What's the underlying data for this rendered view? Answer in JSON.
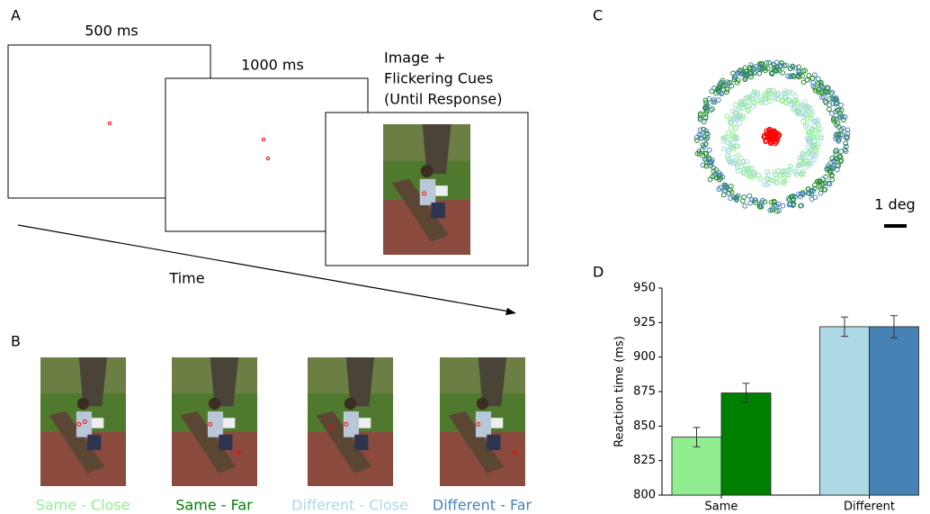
{
  "panel_a": {
    "label": "A",
    "durations": [
      "500 ms",
      "1000 ms"
    ],
    "stimulus_caption": [
      "Image +",
      "Flickering Cues",
      "(Until Response)"
    ],
    "time_label": "Time"
  },
  "panel_b": {
    "label": "B"
  },
  "panel_c": {
    "label": "C",
    "scale_label": "1 deg"
  },
  "chart_data": {
    "label": "D",
    "type": "bar",
    "ylabel": "Reaction time (ms)",
    "categories": [
      "Same",
      "Different"
    ],
    "series": [
      {
        "name": "Same - Close",
        "color": "#90ee90",
        "values": [
          842,
          null
        ],
        "errors": [
          7,
          null
        ]
      },
      {
        "name": "Same - Far",
        "color": "#008000",
        "values": [
          874,
          null
        ],
        "errors": [
          7,
          null
        ]
      },
      {
        "name": "Different - Close",
        "color": "#add8e6",
        "values": [
          null,
          922
        ],
        "errors": [
          null,
          7
        ]
      },
      {
        "name": "Different - Far",
        "color": "#4682b4",
        "values": [
          null,
          922
        ],
        "errors": [
          null,
          8
        ]
      }
    ],
    "ylim": [
      800,
      950
    ],
    "yticks": [
      800,
      825,
      850,
      875,
      900,
      925,
      950
    ],
    "grid": false
  }
}
